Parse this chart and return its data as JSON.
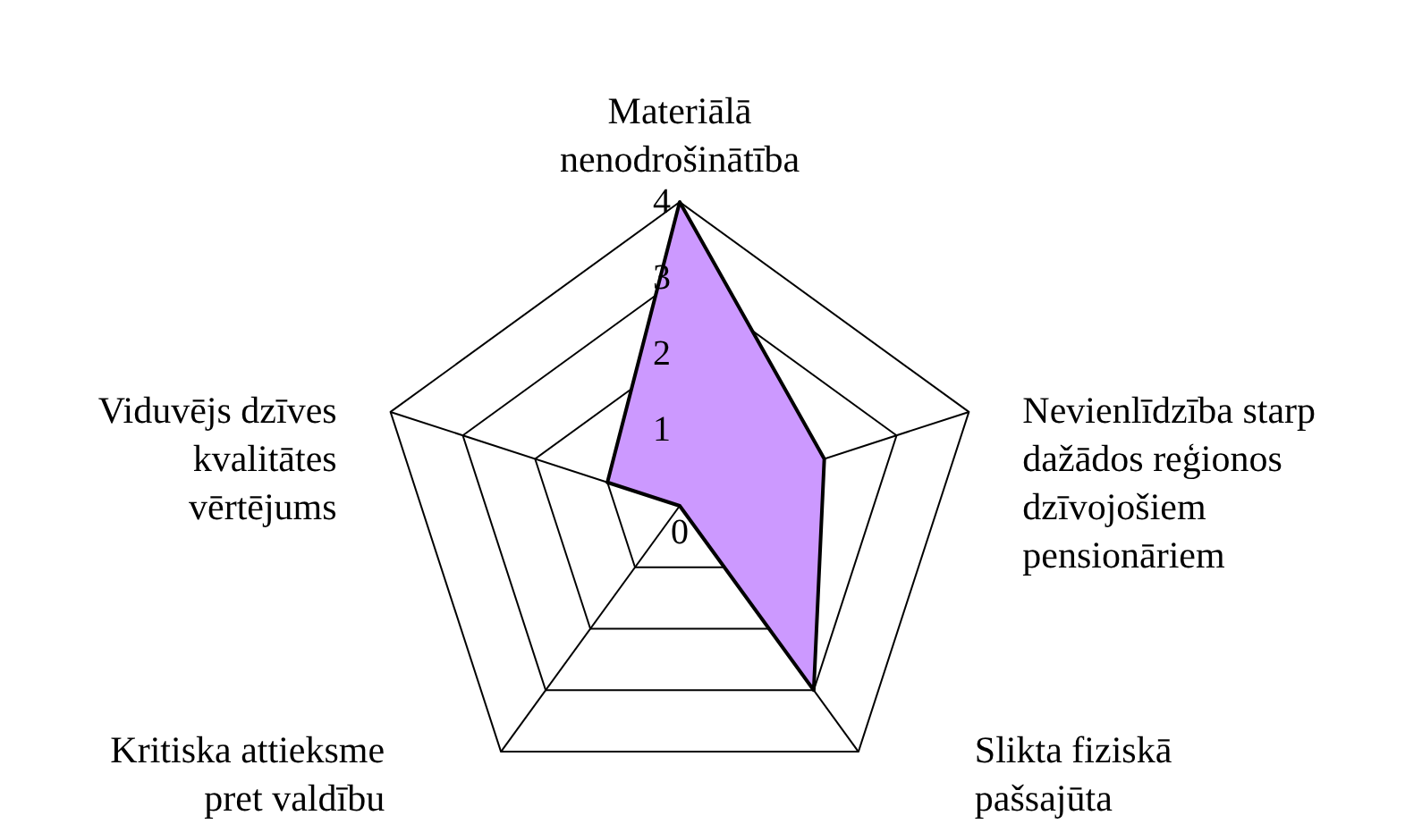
{
  "chart_data": {
    "type": "radar",
    "categories": [
      "Materiālā\nnenodrošinātība",
      "Nevienlīdzība starp\ndažādos reģionos\ndzīvojošiem\npensionāriem",
      "Slikta fiziskā\npašsajūta",
      "Kritiska attieksme\npret valdību",
      "Viduvējs dzīves\nkvalitātes\nvērtējums"
    ],
    "series": [
      {
        "color": "#cc99ff",
        "values": [
          4,
          2,
          3,
          0,
          1
        ]
      }
    ],
    "ylim": [
      0,
      4
    ],
    "yticks": [
      0,
      1,
      2,
      3,
      4
    ],
    "grid": true
  }
}
